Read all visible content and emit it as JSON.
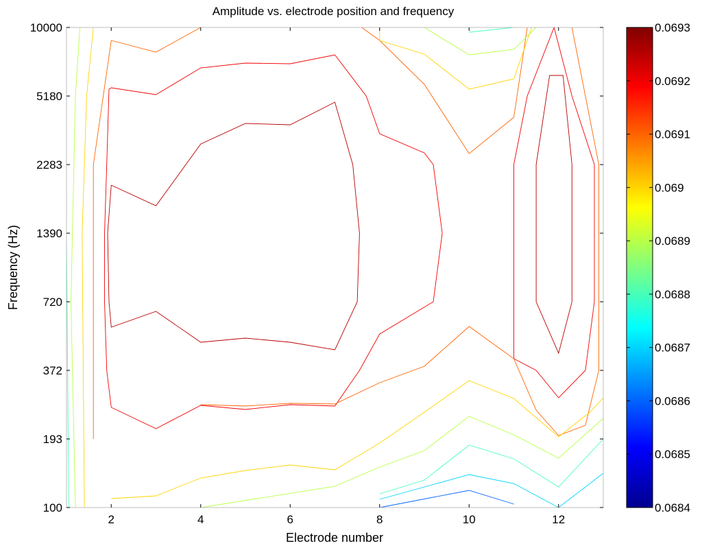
{
  "chart_data": {
    "type": "contour",
    "title": "Amplitude vs. electrode position and frequency",
    "xlabel": "Electrode number",
    "ylabel": "Frequency (Hz)",
    "xlim": [
      1,
      13
    ],
    "x_ticks": [
      2,
      4,
      6,
      8,
      10,
      12
    ],
    "x_tick_labels": [
      "2",
      "4",
      "6",
      "8",
      "10",
      "12"
    ],
    "y_categories": [
      "100",
      "193",
      "372",
      "720",
      "1390",
      "2283",
      "5180",
      "10000"
    ],
    "colorbar": {
      "min": 0.0684,
      "max": 0.0693,
      "ticks": [
        0.0684,
        0.0685,
        0.0686,
        0.0687,
        0.0688,
        0.0689,
        0.069,
        0.0691,
        0.0692,
        0.0693
      ],
      "tick_labels": [
        "0.0684",
        "0.0685",
        "0.0686",
        "0.0687",
        "0.0688",
        "0.0689",
        "0.069",
        "0.0691",
        "0.0692",
        "0.0693"
      ],
      "colormap": "jet"
    },
    "grid": false,
    "contours": [
      {
        "level": 0.06925,
        "points": [
          [
            2,
            4.7
          ],
          [
            3,
            4.4
          ],
          [
            4,
            5.3
          ],
          [
            5,
            5.6
          ],
          [
            6,
            5.58
          ],
          [
            7,
            5.91
          ],
          [
            7.4,
            5
          ],
          [
            7.55,
            4
          ],
          [
            7.5,
            3
          ],
          [
            7,
            2.3
          ],
          [
            6,
            2.41
          ],
          [
            5,
            2.47
          ],
          [
            4,
            2.41
          ],
          [
            3,
            2.86
          ],
          [
            2,
            2.63
          ],
          [
            1.95,
            3
          ],
          [
            1.92,
            4
          ],
          [
            2,
            4.7
          ]
        ]
      },
      {
        "level": 0.06925,
        "points": [
          [
            11.5,
            5
          ],
          [
            11.8,
            6.3
          ],
          [
            12.1,
            6.3
          ],
          [
            12.3,
            5
          ],
          [
            12.3,
            3
          ],
          [
            12,
            2.25
          ],
          [
            11.5,
            3
          ],
          [
            11.5,
            5
          ]
        ]
      },
      {
        "level": 0.0692,
        "points": [
          [
            1.9,
            5
          ],
          [
            1.95,
            6.1
          ],
          [
            2,
            6.12
          ],
          [
            3,
            6.02
          ],
          [
            4,
            6.41
          ],
          [
            5,
            6.48
          ],
          [
            6,
            6.47
          ],
          [
            7,
            6.6
          ],
          [
            7.7,
            6
          ],
          [
            8,
            5.45
          ],
          [
            9,
            5.17
          ],
          [
            9.2,
            5
          ],
          [
            9.4,
            4
          ],
          [
            9.2,
            3
          ],
          [
            8,
            2.53
          ],
          [
            7.55,
            2
          ],
          [
            7,
            1.48
          ],
          [
            6,
            1.5
          ],
          [
            5,
            1.43
          ],
          [
            4,
            1.49
          ],
          [
            3,
            1.15
          ],
          [
            2,
            1.46
          ],
          [
            1.9,
            2
          ],
          [
            1.85,
            3
          ],
          [
            1.85,
            4
          ],
          [
            1.9,
            5
          ]
        ]
      },
      {
        "level": 0.0692,
        "points": [
          [
            11,
            5
          ],
          [
            11.3,
            6
          ],
          [
            11.9,
            7
          ],
          [
            12.3,
            6
          ],
          [
            12.8,
            5
          ],
          [
            12.8,
            3
          ],
          [
            12.6,
            2
          ],
          [
            12,
            1.6
          ],
          [
            11.5,
            2
          ],
          [
            11,
            2.17
          ],
          [
            11,
            3
          ],
          [
            11,
            5
          ]
        ]
      },
      {
        "level": 0.0691,
        "points": [
          [
            1.6,
            1
          ],
          [
            1.6,
            5
          ],
          [
            2,
            6.81
          ],
          [
            3,
            6.64
          ],
          [
            4,
            7
          ]
        ]
      },
      {
        "level": 0.0691,
        "points": [
          [
            7.6,
            7
          ],
          [
            8,
            6.81
          ],
          [
            9,
            6.17
          ],
          [
            10,
            5.16
          ],
          [
            11,
            5.69
          ],
          [
            11.3,
            7
          ]
        ]
      },
      {
        "level": 0.0691,
        "points": [
          [
            13,
            0
          ]
        ]
      },
      {
        "level": 0.0691,
        "points": [
          [
            12.3,
            7
          ],
          [
            12.9,
            5
          ],
          [
            12.9,
            2
          ],
          [
            12.6,
            1.2
          ],
          [
            12,
            1.05
          ],
          [
            11.5,
            1.42
          ],
          [
            11,
            2.17
          ],
          [
            10,
            2.64
          ],
          [
            9,
            2.06
          ],
          [
            8,
            1.82
          ],
          [
            7,
            1.51
          ],
          [
            6,
            1.52
          ],
          [
            5,
            1.48
          ],
          [
            4,
            1.5
          ]
        ]
      },
      {
        "level": 0.069,
        "points": [
          [
            1.4,
            0
          ],
          [
            1.35,
            4
          ],
          [
            1.45,
            6
          ],
          [
            1.6,
            7
          ]
        ]
      },
      {
        "level": 0.069,
        "points": [
          [
            8,
            7
          ],
          [
            8,
            6.81
          ],
          [
            9,
            6.61
          ],
          [
            10,
            6.1
          ],
          [
            11,
            6.25
          ],
          [
            11.4,
            7
          ]
        ]
      },
      {
        "level": 0.069,
        "points": [
          [
            2,
            0.13
          ],
          [
            3,
            0.17
          ],
          [
            4,
            0.43
          ],
          [
            5,
            0.54
          ],
          [
            6,
            0.62
          ],
          [
            7,
            0.55
          ],
          [
            8,
            0.94
          ],
          [
            9,
            1.39
          ],
          [
            10,
            1.85
          ],
          [
            11,
            1.59
          ],
          [
            12,
            1.03
          ],
          [
            12.7,
            1.39
          ],
          [
            13,
            1.6
          ]
        ]
      },
      {
        "level": 0.0689,
        "points": [
          [
            1.2,
            0
          ],
          [
            1.1,
            3
          ],
          [
            1.2,
            6
          ],
          [
            1.3,
            7
          ]
        ]
      },
      {
        "level": 0.0689,
        "points": [
          [
            9,
            7
          ],
          [
            10,
            6.6
          ],
          [
            11,
            6.68
          ],
          [
            11.5,
            7
          ]
        ]
      },
      {
        "level": 0.0689,
        "points": [
          [
            2,
            0
          ],
          [
            4,
            0
          ],
          [
            7,
            0.31
          ],
          [
            8,
            0.59
          ],
          [
            9,
            0.83
          ],
          [
            10,
            1.33
          ],
          [
            11,
            1.06
          ],
          [
            12,
            0.72
          ],
          [
            13,
            1.3
          ]
        ]
      },
      {
        "level": 0.0688,
        "points": [
          [
            1.05,
            0
          ],
          [
            1,
            4
          ]
        ]
      },
      {
        "level": 0.0688,
        "points": [
          [
            10,
            6.93
          ],
          [
            11,
            7
          ]
        ]
      },
      {
        "level": 0.0688,
        "points": [
          [
            8,
            0.2
          ],
          [
            9,
            0.4
          ],
          [
            10,
            0.91
          ],
          [
            11,
            0.71
          ],
          [
            12,
            0.3
          ],
          [
            13,
            1
          ]
        ]
      },
      {
        "level": 0.0687,
        "points": [
          [
            8,
            0.12
          ],
          [
            10,
            0.48
          ],
          [
            11,
            0.35
          ],
          [
            12,
            0
          ],
          [
            13,
            0.5
          ]
        ]
      },
      {
        "level": 0.0686,
        "points": [
          [
            8,
            0
          ],
          [
            10,
            0.25
          ],
          [
            11,
            0.05
          ]
        ]
      },
      {
        "level": 0.0685,
        "points": [
          [
            10,
            0.07
          ]
        ]
      }
    ]
  }
}
